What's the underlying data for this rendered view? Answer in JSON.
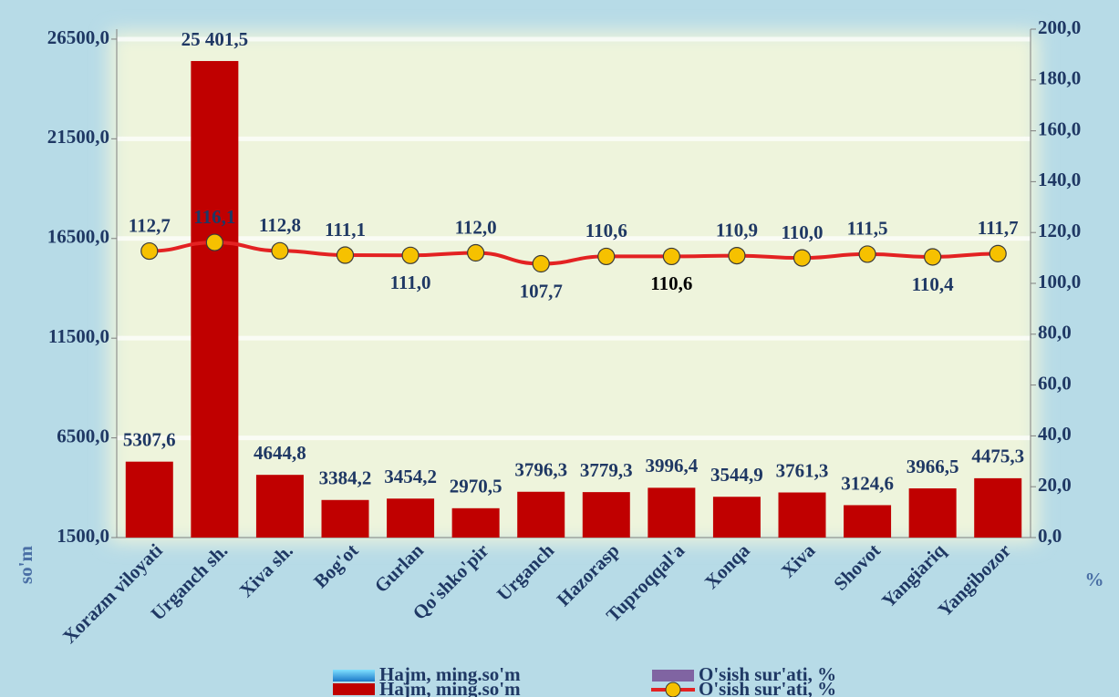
{
  "chart_data": {
    "type": "bar_line",
    "categories": [
      "Xorazm viloyati",
      "Urganch sh.",
      "Xiva sh.",
      "Bog'ot",
      "Gurlan",
      "Qo'shko'pir",
      "Urganch",
      "Hazorasp",
      "Tuproqqal'a",
      "Xonqa",
      "Xiva",
      "Shovot",
      "Yangiariq",
      "Yangibozor"
    ],
    "series": [
      {
        "name": "Hajm, ming.so'm",
        "color": "#c00000",
        "values": [
          5307.6,
          25401.5,
          4644.8,
          3384.2,
          3454.2,
          2970.5,
          3796.3,
          3779.3,
          3996.4,
          3544.9,
          3761.3,
          3124.6,
          3966.5,
          4475.3
        ],
        "value_labels": [
          "5307,6",
          "25 401,5",
          "4644,8",
          "3384,2",
          "3454,2",
          "2970,5",
          "3796,3",
          "3779,3",
          "3996,4",
          "3544,9",
          "3761,3",
          "3124,6",
          "3966,5",
          "4475,3"
        ]
      },
      {
        "name": "O'sish sur'ati, %",
        "color": "#e32222",
        "axis": "y2",
        "values": [
          112.7,
          116.1,
          112.8,
          111.1,
          111.0,
          112.0,
          107.7,
          110.6,
          110.6,
          110.9,
          110.0,
          111.5,
          110.4,
          111.7
        ],
        "value_labels": [
          "112,7",
          "116,1",
          "112,8",
          "111,1",
          "111,0",
          "112,0",
          "107,7",
          "110,6",
          "110,6",
          "110,9",
          "110,0",
          "111,5",
          "110,4",
          "111,7"
        ]
      }
    ],
    "ylabel": "so'm",
    "y2label": "%",
    "ylim": [
      1500,
      27000
    ],
    "yticks": [
      {
        "value": 1500,
        "label": "1500,0"
      },
      {
        "value": 6500,
        "label": "6500,0"
      },
      {
        "value": 11500,
        "label": "11500,0"
      },
      {
        "value": 16500,
        "label": "16500,0"
      },
      {
        "value": 21500,
        "label": "21500,0"
      },
      {
        "value": 26500,
        "label": "26500,0"
      }
    ],
    "y2lim": [
      0,
      200
    ],
    "y2ticks": [
      {
        "value": 0,
        "label": "0,0"
      },
      {
        "value": 20,
        "label": "20,0"
      },
      {
        "value": 40,
        "label": "40,0"
      },
      {
        "value": 60,
        "label": "60,0"
      },
      {
        "value": 80,
        "label": "80,0"
      },
      {
        "value": 100,
        "label": "100,0"
      },
      {
        "value": 120,
        "label": "120,0"
      },
      {
        "value": 140,
        "label": "140,0"
      },
      {
        "value": 160,
        "label": "160,0"
      },
      {
        "value": 180,
        "label": "180,0"
      },
      {
        "value": 200,
        "label": "200,0"
      }
    ],
    "grid": true
  }
}
